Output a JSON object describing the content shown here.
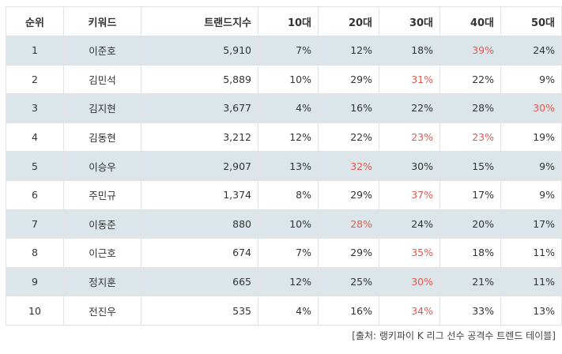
{
  "table": {
    "headers": [
      "순위",
      "키워드",
      "트랜드지수",
      "10대",
      "20대",
      "30대",
      "40대",
      "50대"
    ],
    "rows": [
      {
        "rank": "1",
        "keyword": "이준호",
        "index": "5,910",
        "ages": [
          "7%",
          "12%",
          "18%",
          "39%",
          "24%"
        ],
        "highlight": 3
      },
      {
        "rank": "2",
        "keyword": "김민석",
        "index": "5,889",
        "ages": [
          "10%",
          "29%",
          "31%",
          "22%",
          "9%"
        ],
        "highlight": 2
      },
      {
        "rank": "3",
        "keyword": "김지현",
        "index": "3,677",
        "ages": [
          "4%",
          "16%",
          "22%",
          "28%",
          "30%"
        ],
        "highlight": 4
      },
      {
        "rank": "4",
        "keyword": "김동현",
        "index": "3,212",
        "ages": [
          "12%",
          "22%",
          "23%",
          "23%",
          "19%"
        ],
        "highlight": [
          2,
          3
        ]
      },
      {
        "rank": "5",
        "keyword": "이승우",
        "index": "2,907",
        "ages": [
          "13%",
          "32%",
          "30%",
          "15%",
          "9%"
        ],
        "highlight": 1
      },
      {
        "rank": "6",
        "keyword": "주민규",
        "index": "1,374",
        "ages": [
          "8%",
          "29%",
          "37%",
          "17%",
          "9%"
        ],
        "highlight": 2
      },
      {
        "rank": "7",
        "keyword": "이동준",
        "index": "880",
        "ages": [
          "10%",
          "28%",
          "24%",
          "20%",
          "17%"
        ],
        "highlight": 1
      },
      {
        "rank": "8",
        "keyword": "이근호",
        "index": "674",
        "ages": [
          "7%",
          "29%",
          "35%",
          "18%",
          "11%"
        ],
        "highlight": 2
      },
      {
        "rank": "9",
        "keyword": "정지훈",
        "index": "665",
        "ages": [
          "12%",
          "25%",
          "30%",
          "21%",
          "11%"
        ],
        "highlight": 2
      },
      {
        "rank": "10",
        "keyword": "전진우",
        "index": "535",
        "ages": [
          "4%",
          "16%",
          "34%",
          "33%",
          "13%"
        ],
        "highlight": 2
      }
    ]
  },
  "source": "[출처: 랭키파이 K 리그 선수 공격수 트렌드 테이블]",
  "colors": {
    "shade": "#dbe5ea",
    "highlight": "#e05a4f",
    "border": "#e3e3e3"
  }
}
